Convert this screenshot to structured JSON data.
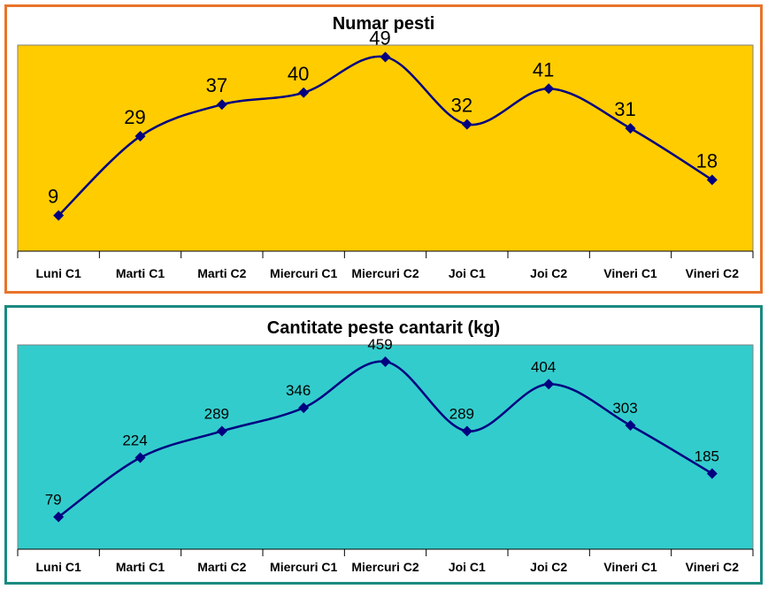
{
  "chart_data": [
    {
      "type": "line",
      "title": "Numar pesti",
      "xlabel": "",
      "ylabel": "",
      "categories": [
        "Luni C1",
        "Marti C1",
        "Marti C2",
        "Miercuri C1",
        "Miercuri C2",
        "Joi C1",
        "Joi C2",
        "Vineri C1",
        "Vineri C2"
      ],
      "series": [
        {
          "values": [
            9,
            29,
            37,
            40,
            49,
            32,
            41,
            31,
            18
          ]
        }
      ],
      "ylim": [
        0,
        52
      ],
      "smooth": true,
      "grid": false,
      "plot_background": "#ffcc00",
      "line_color": "#000080",
      "marker": "diamond",
      "border_color": "#e8742a"
    },
    {
      "type": "line",
      "title": "Cantitate peste cantarit (kg)",
      "xlabel": "",
      "ylabel": "",
      "categories": [
        "Luni C1",
        "Marti C1",
        "Marti C2",
        "Miercuri C1",
        "Miercuri C2",
        "Joi C1",
        "Joi C2",
        "Vineri C1",
        "Vineri C2"
      ],
      "series": [
        {
          "values": [
            79,
            224,
            289,
            346,
            459,
            289,
            404,
            303,
            185
          ]
        }
      ],
      "ylim": [
        0,
        500
      ],
      "smooth": true,
      "grid": false,
      "plot_background": "#33cccc",
      "line_color": "#000080",
      "marker": "diamond",
      "border_color": "#1a8a80"
    }
  ]
}
